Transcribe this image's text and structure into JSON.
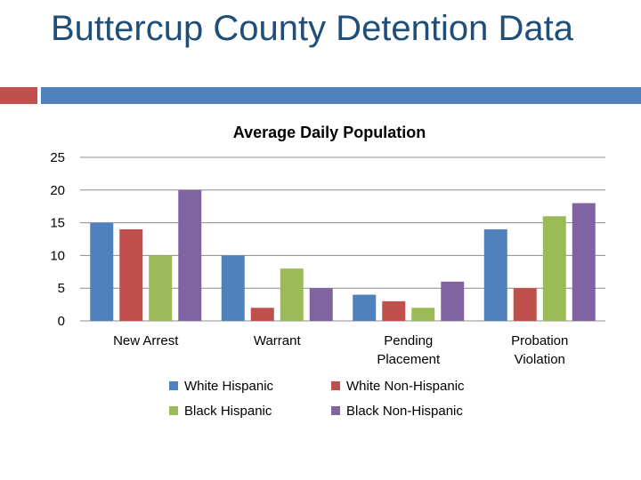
{
  "slide": {
    "title": "Buttercup County Detention Data"
  },
  "chart_data": {
    "type": "bar",
    "title": "Average Daily Population",
    "categories": [
      "New Arrest",
      "Warrant",
      "Pending Placement",
      "Probation Violation"
    ],
    "category_lines": [
      [
        "New Arrest"
      ],
      [
        "Warrant"
      ],
      [
        "Pending",
        "Placement"
      ],
      [
        "Probation",
        "Violation"
      ]
    ],
    "series": [
      {
        "name": "White Hispanic",
        "color": "#4f81bd",
        "values": [
          15,
          10,
          4,
          14
        ]
      },
      {
        "name": "White Non-Hispanic",
        "color": "#c0504d",
        "values": [
          14,
          2,
          3,
          5
        ]
      },
      {
        "name": "Black Hispanic",
        "color": "#9bbb59",
        "values": [
          10,
          8,
          2,
          16
        ]
      },
      {
        "name": "Black Non-Hispanic",
        "color": "#8064a2",
        "values": [
          20,
          5,
          6,
          18
        ]
      }
    ],
    "yticks": [
      "0",
      "5",
      "10",
      "15",
      "20",
      "25"
    ],
    "ylim": [
      0,
      25
    ],
    "grid": true,
    "legend": "bottom"
  }
}
